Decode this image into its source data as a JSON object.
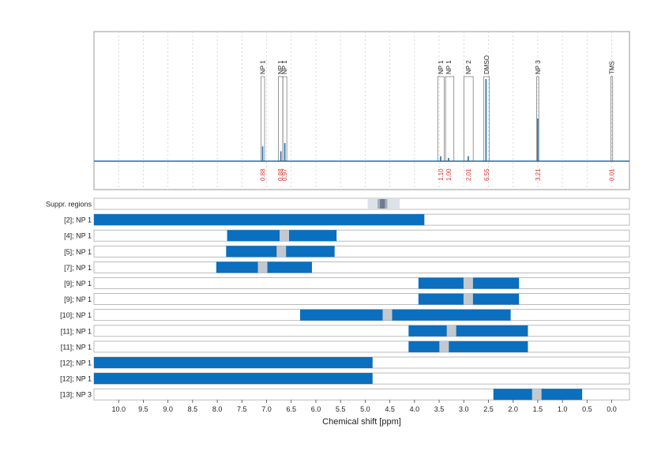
{
  "chart_data": {
    "type": "nmr-spectrum",
    "xlabel": "Chemical shift [ppm]",
    "x_range": [
      10.5,
      0.0
    ],
    "x_ticks": [
      10.0,
      9.5,
      9.0,
      8.5,
      8.0,
      7.5,
      7.0,
      6.5,
      6.0,
      5.5,
      5.0,
      4.5,
      4.0,
      3.5,
      3.0,
      2.5,
      2.0,
      1.5,
      1.0,
      0.5,
      0.0
    ],
    "x_tick_labels": [
      "10.0",
      "9.5",
      "9.0",
      "8.5",
      "8.0",
      "7.5",
      "7.0",
      "6.5",
      "6.0",
      "5.5",
      "5.0",
      "4.5",
      "4.0",
      "3.5",
      "3.0",
      "2.5",
      "2.0",
      "1.5",
      "1.0",
      "0.5",
      "0.0"
    ],
    "line_color": "#1f6fb0",
    "peaks": [
      {
        "shift": 7.08,
        "height": 0.18
      },
      {
        "shift": 6.71,
        "height": 0.12
      },
      {
        "shift": 6.63,
        "height": 0.22
      },
      {
        "shift": 3.47,
        "height": 0.06
      },
      {
        "shift": 3.31,
        "height": 0.04
      },
      {
        "shift": 2.91,
        "height": 0.06
      },
      {
        "shift": 2.55,
        "height": 1.0
      },
      {
        "shift": 1.5,
        "height": 0.52
      },
      {
        "shift": 0.0,
        "height": 0.0
      }
    ],
    "annotations": [
      {
        "label": "NP 1",
        "center": 7.08,
        "from": 7.11,
        "to": 7.04,
        "integral": "0.88"
      },
      {
        "label": "NP 1",
        "center": 6.72,
        "from": 6.76,
        "to": 6.67,
        "integral": "0.88"
      },
      {
        "label": "NP 1",
        "center": 6.64,
        "from": 6.67,
        "to": 6.59,
        "integral": "0.97"
      },
      {
        "label": "NP 1",
        "center": 3.47,
        "from": 3.53,
        "to": 3.4,
        "integral": "1.10"
      },
      {
        "label": "NP 1",
        "center": 3.31,
        "from": 3.37,
        "to": 3.2,
        "integral": "1.00"
      },
      {
        "label": "NP 2",
        "center": 2.91,
        "from": 3.0,
        "to": 2.81,
        "integral": "2.01"
      },
      {
        "label": "DMSO",
        "center": 2.54,
        "from": 2.6,
        "to": 2.48,
        "integral": "6.55"
      },
      {
        "label": "NP 3",
        "center": 1.5,
        "from": 1.52,
        "to": 1.48,
        "integral": "3.21"
      },
      {
        "label": "TMS",
        "center": 0.0,
        "from": 0.02,
        "to": -0.02,
        "integral": "0.01"
      }
    ],
    "suppression": {
      "label": "Suppr. regions",
      "outer": [
        4.95,
        4.3
      ],
      "inner": [
        4.75,
        4.55
      ],
      "core": [
        4.7,
        4.6
      ]
    },
    "bar_color": "#0a6fbf",
    "marker_color": "#c4c9cf",
    "rows": [
      {
        "label": "[2]; NP 1",
        "from": 10.5,
        "to": 3.8,
        "marker": null
      },
      {
        "label": "[4]; NP 1",
        "from": 7.8,
        "to": 5.58,
        "marker": 6.64
      },
      {
        "label": "[5]; NP 1",
        "from": 7.82,
        "to": 5.62,
        "marker": 6.7
      },
      {
        "label": "[7]; NP 1",
        "from": 8.02,
        "to": 6.08,
        "marker": 7.08
      },
      {
        "label": "[9]; NP 1",
        "from": 3.92,
        "to": 1.88,
        "marker": 2.91
      },
      {
        "label": "[9]; NP 1",
        "from": 3.92,
        "to": 1.88,
        "marker": 2.91
      },
      {
        "label": "[10]; NP 1",
        "from": 6.32,
        "to": 2.05,
        "marker": 4.55
      },
      {
        "label": "[11]; NP 1",
        "from": 4.12,
        "to": 1.7,
        "marker": 3.25
      },
      {
        "label": "[11]; NP 1",
        "from": 4.12,
        "to": 1.7,
        "marker": 3.4
      },
      {
        "label": "[12]; NP 1",
        "from": 10.5,
        "to": 4.85,
        "marker": null
      },
      {
        "label": "[12]; NP 1",
        "from": 10.5,
        "to": 4.85,
        "marker": null
      },
      {
        "label": "[13]; NP 3",
        "from": 2.4,
        "to": 0.6,
        "marker": 1.52
      }
    ]
  }
}
